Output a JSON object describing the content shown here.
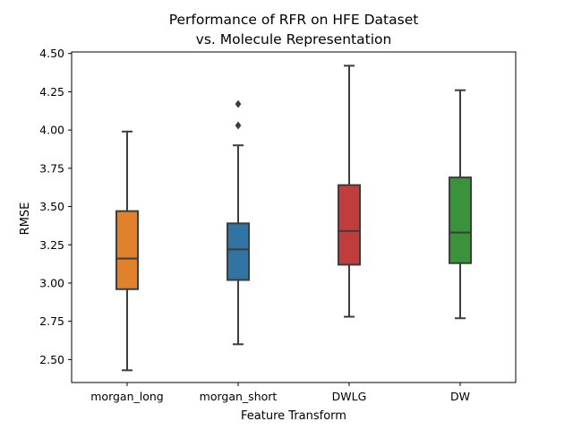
{
  "chart_data": {
    "type": "box",
    "title_lines": [
      "Performance of RFR on HFE Dataset",
      "vs. Molecule Representation"
    ],
    "xlabel": "Feature Transform",
    "ylabel": "RMSE",
    "ylim": [
      2.35,
      4.51
    ],
    "yticks": [
      2.5,
      2.75,
      3.0,
      3.25,
      3.5,
      3.75,
      4.0,
      4.25,
      4.5
    ],
    "ytick_labels": [
      "2.50",
      "2.75",
      "3.00",
      "3.25",
      "3.50",
      "3.75",
      "4.00",
      "4.25",
      "4.50"
    ],
    "categories": [
      "morgan_long",
      "morgan_short",
      "DWLG",
      "DW"
    ],
    "grid": false,
    "series": [
      {
        "category": "morgan_long",
        "color": "#e1812c",
        "whisker_low": 2.43,
        "q1": 2.96,
        "median": 3.16,
        "q3": 3.47,
        "whisker_high": 3.99,
        "outliers": []
      },
      {
        "category": "morgan_short",
        "color": "#3274a1",
        "whisker_low": 2.6,
        "q1": 3.02,
        "median": 3.22,
        "q3": 3.39,
        "whisker_high": 3.9,
        "outliers": [
          4.03,
          4.17
        ]
      },
      {
        "category": "DWLG",
        "color": "#c03d3e",
        "whisker_low": 2.78,
        "q1": 3.12,
        "median": 3.34,
        "q3": 3.64,
        "whisker_high": 4.42,
        "outliers": []
      },
      {
        "category": "DW",
        "color": "#3a923a",
        "whisker_low": 2.77,
        "q1": 3.13,
        "median": 3.33,
        "q3": 3.69,
        "whisker_high": 4.26,
        "outliers": []
      }
    ]
  }
}
